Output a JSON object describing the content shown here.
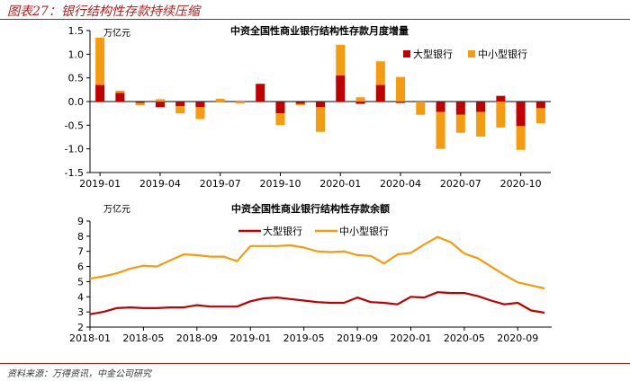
{
  "figure": {
    "title": "图表27：银行结构性存款持续压缩",
    "source": "资料来源：万得资讯，中金公司研究"
  },
  "colors": {
    "large_bank": "#c00000",
    "small_mid_bank": "#f59b0f",
    "accent": "#b31b1b"
  },
  "chart_data": [
    {
      "type": "bar",
      "stacked": true,
      "title": "中资全国性商业银行结构性存款月度增量",
      "ylabel": "万亿元",
      "ylim": [
        -1.5,
        1.5
      ],
      "yticks": [
        "1.5",
        "1.0",
        "0.5",
        "0.0",
        "-0.5",
        "-1.0",
        "-1.5"
      ],
      "ytick_values": [
        1.5,
        1.0,
        0.5,
        0.0,
        -0.5,
        -1.0,
        -1.5
      ],
      "legend_position": "top-right",
      "categories": [
        "2019-01",
        "2019-02",
        "2019-03",
        "2019-04",
        "2019-05",
        "2019-06",
        "2019-07",
        "2019-08",
        "2019-09",
        "2019-10",
        "2019-11",
        "2019-12",
        "2020-01",
        "2020-02",
        "2020-03",
        "2020-04",
        "2020-05",
        "2020-06",
        "2020-07",
        "2020-08",
        "2020-09",
        "2020-10",
        "2020-11"
      ],
      "xtick_labels": [
        "2019-01",
        "2019-04",
        "2019-07",
        "2019-10",
        "2020-01",
        "2020-04",
        "2020-07",
        "2020-10"
      ],
      "xtick_indices": [
        0,
        3,
        6,
        9,
        12,
        15,
        18,
        21
      ],
      "series": [
        {
          "name": "大型银行",
          "color": "#c00000",
          "values": [
            0.35,
            0.18,
            -0.03,
            -0.12,
            -0.1,
            -0.12,
            0.0,
            0.01,
            0.38,
            -0.25,
            -0.05,
            -0.12,
            0.55,
            -0.05,
            0.35,
            -0.03,
            0.0,
            -0.22,
            -0.28,
            -0.22,
            0.12,
            -0.52,
            -0.14
          ]
        },
        {
          "name": "中小型银行",
          "color": "#f59b0f",
          "values": [
            1.0,
            0.05,
            -0.05,
            0.05,
            -0.15,
            -0.25,
            0.06,
            -0.04,
            0.0,
            -0.25,
            -0.03,
            -0.52,
            0.65,
            0.09,
            0.5,
            0.52,
            -0.28,
            -0.78,
            -0.38,
            -0.52,
            -0.55,
            -0.5,
            -0.32
          ]
        }
      ]
    },
    {
      "type": "line",
      "title": "中资全国性商业银行结构性存款余额",
      "ylabel": "万亿元",
      "ylim": [
        2,
        9
      ],
      "yticks": [
        "2",
        "3",
        "4",
        "5",
        "6",
        "7",
        "8",
        "9"
      ],
      "ytick_values": [
        2,
        3,
        4,
        5,
        6,
        7,
        8,
        9
      ],
      "legend_position": "top-center",
      "x": [
        "2018-01",
        "2018-02",
        "2018-03",
        "2018-04",
        "2018-05",
        "2018-06",
        "2018-07",
        "2018-08",
        "2018-09",
        "2018-10",
        "2018-11",
        "2018-12",
        "2019-01",
        "2019-02",
        "2019-03",
        "2019-04",
        "2019-05",
        "2019-06",
        "2019-07",
        "2019-08",
        "2019-09",
        "2019-10",
        "2019-11",
        "2019-12",
        "2020-01",
        "2020-02",
        "2020-03",
        "2020-04",
        "2020-05",
        "2020-06",
        "2020-07",
        "2020-08",
        "2020-09",
        "2020-10",
        "2020-11"
      ],
      "xtick_labels": [
        "2018-01",
        "2018-05",
        "2018-09",
        "2019-01",
        "2019-05",
        "2019-09",
        "2020-01",
        "2020-05",
        "2020-09"
      ],
      "xtick_indices": [
        0,
        4,
        8,
        12,
        16,
        20,
        24,
        28,
        32
      ],
      "series": [
        {
          "name": "大型银行",
          "color": "#c00000",
          "values": [
            2.85,
            3.0,
            3.25,
            3.3,
            3.25,
            3.25,
            3.3,
            3.3,
            3.45,
            3.35,
            3.35,
            3.35,
            3.7,
            3.9,
            3.95,
            3.85,
            3.75,
            3.65,
            3.6,
            3.6,
            3.95,
            3.65,
            3.6,
            3.5,
            4.0,
            3.95,
            4.3,
            4.25,
            4.25,
            4.05,
            3.75,
            3.5,
            3.6,
            3.1,
            2.95
          ]
        },
        {
          "name": "中小型银行",
          "color": "#f59b0f",
          "values": [
            5.2,
            5.35,
            5.55,
            5.85,
            6.05,
            6.0,
            6.4,
            6.8,
            6.75,
            6.65,
            6.65,
            6.35,
            7.35,
            7.35,
            7.35,
            7.4,
            7.25,
            7.0,
            6.95,
            7.0,
            6.75,
            6.7,
            6.2,
            6.8,
            6.9,
            7.45,
            7.95,
            7.6,
            6.85,
            6.55,
            6.0,
            5.45,
            4.95,
            4.75,
            4.55
          ]
        }
      ]
    }
  ]
}
